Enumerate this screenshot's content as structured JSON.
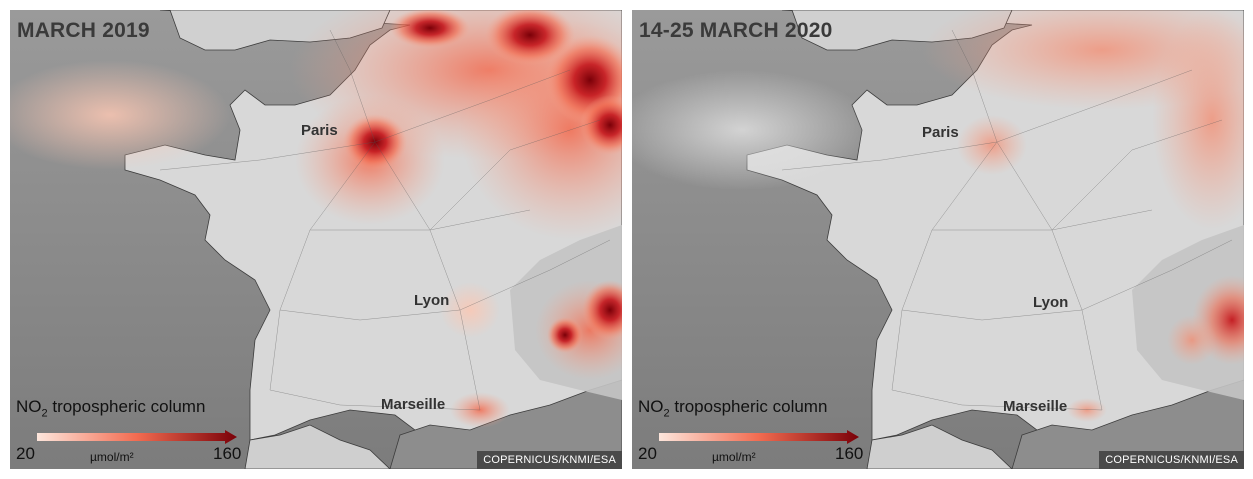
{
  "colors": {
    "sea": "#8c8c8c",
    "land": "#d9d9d9",
    "no2_low": "#fde0d2",
    "no2_mid": "#f26b50",
    "no2_high": "#7a0008",
    "credit_bg": "#4a4a4a"
  },
  "panels": [
    {
      "title": "MARCH 2019",
      "cities": {
        "paris": "Paris",
        "lyon": "Lyon",
        "marseille": "Marseille"
      },
      "legend": {
        "label_main": "NO",
        "label_sub": "2",
        "label_rest": " tropospheric column",
        "min": "20",
        "max": "160",
        "unit": "µmol/m²"
      },
      "credit": "COPERNICUS/KNMI/ESA"
    },
    {
      "title": "14-25 MARCH 2020",
      "cities": {
        "paris": "Paris",
        "lyon": "Lyon",
        "marseille": "Marseille"
      },
      "legend": {
        "label_main": "NO",
        "label_sub": "2",
        "label_rest": " tropospheric column",
        "min": "20",
        "max": "160",
        "unit": "µmol/m²"
      },
      "credit": "COPERNICUS/KNMI/ESA"
    }
  ]
}
